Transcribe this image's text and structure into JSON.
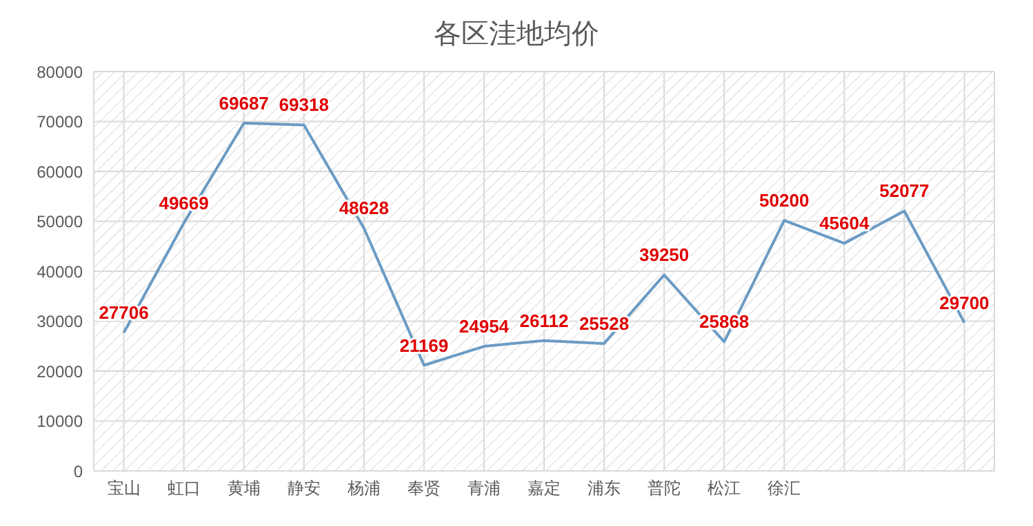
{
  "chart_data": {
    "type": "line",
    "title": "各区洼地均价",
    "categories": [
      "宝山",
      "虹口",
      "黄埔",
      "静安",
      "杨浦",
      "奉贤",
      "青浦",
      "嘉定",
      "浦东",
      "普陀",
      "松江",
      "徐汇",
      null,
      null,
      null
    ],
    "series": [
      {
        "color": "#6a9bc4",
        "values": [
          27706,
          49669,
          69687,
          69318,
          48628,
          21169,
          24954,
          26112,
          25528,
          39250,
          25868,
          50200,
          45604,
          52077,
          29700
        ]
      }
    ],
    "ylim": [
      0,
      80000
    ],
    "yticks": [
      0,
      10000,
      20000,
      30000,
      40000,
      50000,
      60000,
      70000,
      80000
    ],
    "grid": true,
    "data_labels": true,
    "marker": "none",
    "line_style": "solid"
  }
}
